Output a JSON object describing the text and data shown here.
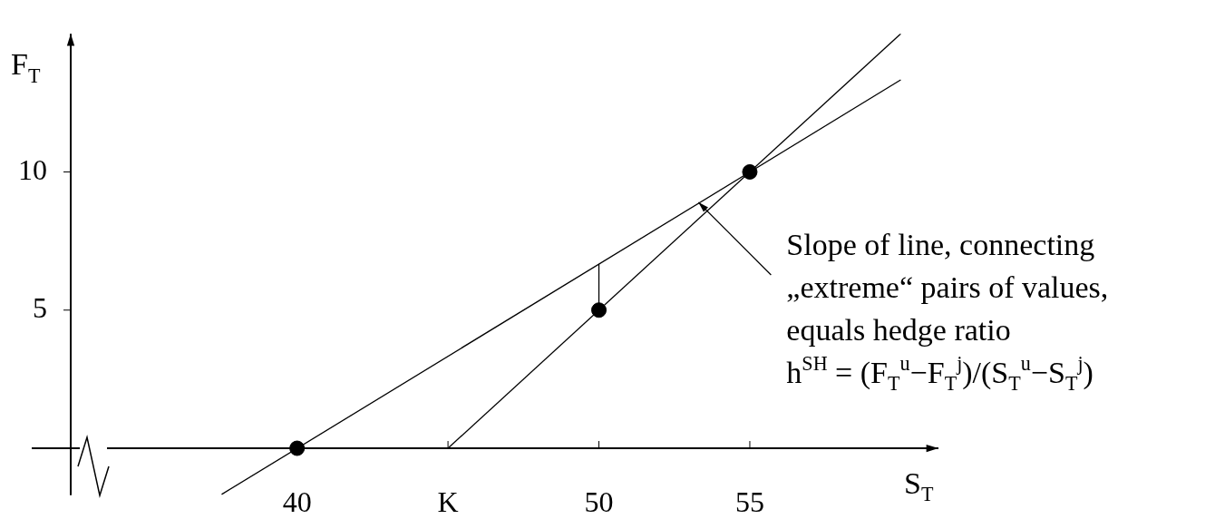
{
  "chart_data": {
    "type": "line",
    "xlabel": "S$_{T}$",
    "ylabel": "F$_{T}$",
    "xlim": [
      32.5,
      61.25
    ],
    "ylim": [
      -1.7,
      15
    ],
    "xticks": [
      40,
      {
        "value": 45,
        "label": "K"
      },
      50,
      55
    ],
    "yticks": [
      {
        "value": 0,
        "label": null
      },
      5,
      10
    ],
    "grid": false,
    "legend": false,
    "series": [
      {
        "type": "line",
        "x": [
          45,
          60
        ],
        "values": [
          0,
          15
        ],
        "color": "#000000"
      },
      {
        "type": "line",
        "x": [
          37.5,
          60
        ],
        "values": [
          -1.67,
          13.33
        ],
        "color": "#000000"
      },
      {
        "type": "line",
        "x": [
          50,
          50
        ],
        "values": [
          5,
          6.67
        ],
        "color": "#000000"
      },
      {
        "type": "scatter",
        "x": [
          40,
          50,
          55
        ],
        "values": [
          0,
          5,
          10
        ],
        "color": "#000000",
        "marker": "circle"
      }
    ],
    "annotations": [
      {
        "text": "Slope of line, connecting",
        "x": 53.3,
        "y": 8.9
      },
      "„extreme“ pairs of values,",
      "equals hedge ratio",
      "h$^{SH}$ = (F$_{T}$$^{u}$−F$_{T}$$^{j}$)/(S$_{T}$$^{u}$−S$_{T}$$^{j}$)"
    ]
  }
}
